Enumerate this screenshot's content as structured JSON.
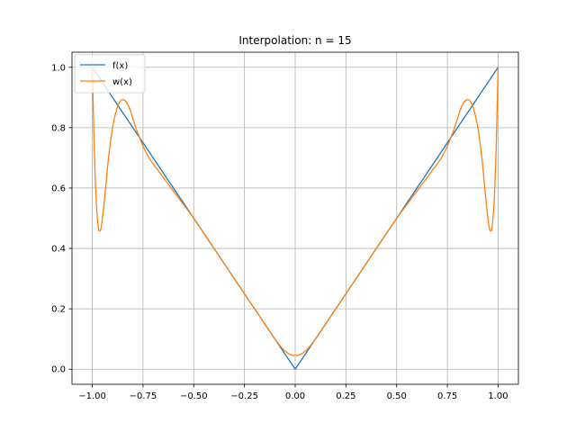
{
  "chart_data": {
    "type": "line",
    "title": "Interpolation: n = 15",
    "xlabel": "",
    "ylabel": "",
    "xlim": [
      -1.1,
      1.1
    ],
    "ylim": [
      -0.05,
      1.05
    ],
    "grid": true,
    "legend_position": "top-left",
    "x_ticks": [
      -1.0,
      -0.75,
      -0.5,
      -0.25,
      0.0,
      0.25,
      0.5,
      0.75,
      1.0
    ],
    "x_tick_labels": [
      "−1.00",
      "−0.75",
      "−0.50",
      "−0.25",
      "0.00",
      "0.25",
      "0.50",
      "0.75",
      "1.00"
    ],
    "y_ticks": [
      0.0,
      0.2,
      0.4,
      0.6,
      0.8,
      1.0
    ],
    "y_tick_labels": [
      "0.0",
      "0.2",
      "0.4",
      "0.6",
      "0.8",
      "1.0"
    ],
    "series": [
      {
        "name": "f(x)",
        "color": "#1f77b4",
        "x": [
          -1.0,
          0.0,
          1.0
        ],
        "y": [
          1.0,
          0.0,
          1.0
        ]
      },
      {
        "name": "w(x)",
        "color": "#ff7f0e",
        "x": [
          -1.0,
          -0.995,
          -0.99,
          -0.98,
          -0.97,
          -0.963,
          -0.955,
          -0.94,
          -0.92,
          -0.9,
          -0.88,
          -0.86,
          -0.84,
          -0.82,
          -0.8,
          -0.78,
          -0.76,
          -0.74,
          -0.72,
          -0.7,
          -0.65,
          -0.6,
          -0.55,
          -0.5,
          -0.45,
          -0.4,
          -0.35,
          -0.3,
          -0.25,
          -0.2,
          -0.15,
          -0.1,
          -0.05,
          0.0,
          0.05,
          0.1,
          0.15,
          0.2,
          0.25,
          0.3,
          0.35,
          0.4,
          0.45,
          0.5,
          0.55,
          0.6,
          0.65,
          0.7,
          0.72,
          0.74,
          0.76,
          0.78,
          0.8,
          0.82,
          0.84,
          0.86,
          0.88,
          0.9,
          0.92,
          0.94,
          0.955,
          0.963,
          0.97,
          0.98,
          0.99,
          0.995,
          1.0
        ],
        "y": [
          1.0,
          0.86,
          0.72,
          0.55,
          0.47,
          0.458,
          0.475,
          0.56,
          0.7,
          0.8,
          0.86,
          0.89,
          0.89,
          0.87,
          0.83,
          0.79,
          0.755,
          0.725,
          0.7,
          0.68,
          0.635,
          0.59,
          0.545,
          0.5,
          0.45,
          0.4,
          0.35,
          0.3,
          0.25,
          0.2,
          0.15,
          0.1,
          0.06,
          0.045,
          0.06,
          0.1,
          0.15,
          0.2,
          0.25,
          0.3,
          0.35,
          0.4,
          0.45,
          0.5,
          0.545,
          0.59,
          0.635,
          0.68,
          0.7,
          0.725,
          0.755,
          0.79,
          0.83,
          0.87,
          0.89,
          0.89,
          0.86,
          0.8,
          0.7,
          0.56,
          0.475,
          0.458,
          0.47,
          0.55,
          0.72,
          0.86,
          1.0
        ]
      }
    ]
  }
}
